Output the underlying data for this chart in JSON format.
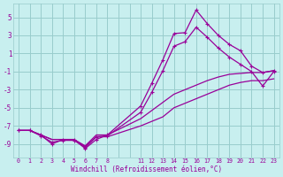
{
  "xlabel": "Windchill (Refroidissement éolien,°C)",
  "background_color": "#c8efef",
  "grid_color": "#99cccc",
  "line_color": "#990099",
  "xlim": [
    -0.5,
    23.5
  ],
  "ylim": [
    -10.5,
    6.5
  ],
  "yticks": [
    -9,
    -7,
    -5,
    -3,
    -1,
    1,
    3,
    5
  ],
  "xticks": [
    0,
    1,
    2,
    3,
    4,
    5,
    6,
    7,
    8,
    11,
    12,
    13,
    14,
    15,
    16,
    17,
    18,
    19,
    20,
    21,
    22,
    23
  ],
  "line1_x": [
    0,
    1,
    2,
    3,
    4,
    5,
    6,
    7,
    8,
    11,
    12,
    13,
    14,
    15,
    16,
    17,
    18,
    19,
    20,
    21,
    22,
    23
  ],
  "line1_y": [
    -7.5,
    -7.5,
    -8.0,
    -9.0,
    -8.5,
    -8.5,
    -9.5,
    -8.5,
    -8.0,
    -4.8,
    -2.3,
    0.3,
    3.2,
    3.3,
    5.8,
    4.3,
    3.0,
    2.0,
    1.3,
    -0.4,
    -1.1,
    -0.9
  ],
  "line2_x": [
    0,
    1,
    2,
    3,
    4,
    5,
    6,
    7,
    8,
    11,
    12,
    13,
    14,
    15,
    16,
    17,
    18,
    19,
    20,
    21,
    22,
    23
  ],
  "line2_y": [
    -7.5,
    -7.5,
    -8.1,
    -8.8,
    -8.6,
    -8.6,
    -9.4,
    -8.2,
    -8.1,
    -5.5,
    -3.3,
    -0.9,
    1.8,
    2.3,
    3.9,
    2.8,
    1.6,
    0.6,
    -0.2,
    -1.0,
    -2.6,
    -1.0
  ],
  "line3_x": [
    0,
    1,
    2,
    3,
    4,
    5,
    6,
    7,
    8,
    11,
    12,
    13,
    14,
    15,
    16,
    17,
    18,
    19,
    20,
    21,
    22,
    23
  ],
  "line3_y": [
    -7.5,
    -7.5,
    -8.0,
    -8.5,
    -8.5,
    -8.5,
    -9.2,
    -8.0,
    -8.0,
    -6.2,
    -5.3,
    -4.4,
    -3.5,
    -3.0,
    -2.5,
    -2.0,
    -1.6,
    -1.3,
    -1.2,
    -1.1,
    -1.1,
    -0.9
  ],
  "line4_x": [
    0,
    1,
    2,
    3,
    4,
    5,
    6,
    7,
    8,
    11,
    12,
    13,
    14,
    15,
    16,
    17,
    18,
    19,
    20,
    21,
    22,
    23
  ],
  "line4_y": [
    -7.5,
    -7.5,
    -8.0,
    -8.5,
    -8.5,
    -8.5,
    -9.3,
    -8.2,
    -8.2,
    -7.0,
    -6.5,
    -6.0,
    -5.0,
    -4.5,
    -4.0,
    -3.5,
    -3.0,
    -2.5,
    -2.2,
    -2.0,
    -2.0,
    -1.8
  ],
  "marker_x_line1": [
    0,
    1,
    2,
    3,
    4,
    5,
    6,
    7,
    8,
    11,
    12,
    13,
    14,
    15,
    16,
    17,
    18,
    19,
    20,
    21,
    22,
    23
  ],
  "marker_x_line2": [
    0,
    1,
    2,
    3,
    4,
    5,
    6,
    7,
    8,
    11,
    12,
    13,
    14,
    15,
    16,
    17,
    18,
    19,
    20,
    21,
    22,
    23
  ]
}
